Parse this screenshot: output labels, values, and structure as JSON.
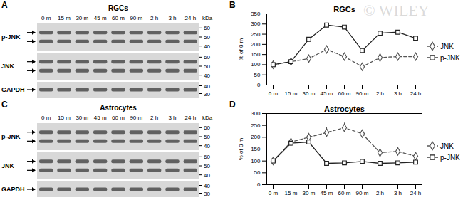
{
  "watermark": "© WILEY",
  "blots": [
    {
      "panel": "A",
      "title": "RGCs",
      "unit": "kDa",
      "lanes": [
        "0 m",
        "15 m",
        "30 m",
        "45 m",
        "60 m",
        "90 m",
        "2 h",
        "3 h",
        "24 h"
      ],
      "rows": [
        {
          "label": "p-JNK",
          "arrows": 2,
          "markers": [
            60,
            50,
            40
          ]
        },
        {
          "label": "JNK",
          "arrows": 2,
          "markers": [
            60,
            50,
            40
          ]
        },
        {
          "label": "GAPDH",
          "arrows": 1,
          "markers": [
            40,
            30
          ]
        }
      ]
    },
    {
      "panel": "C",
      "title": "Astrocytes",
      "unit": "kDa",
      "lanes": [
        "0 m",
        "15 m",
        "30 m",
        "45 m",
        "60 m",
        "90 m",
        "2 h",
        "3 h",
        "24 h"
      ],
      "rows": [
        {
          "label": "p-JNK",
          "arrows": 2,
          "markers": [
            60,
            50,
            40
          ]
        },
        {
          "label": "JNK",
          "arrows": 2,
          "markers": [
            60,
            50,
            40
          ]
        },
        {
          "label": "GAPDH",
          "arrows": 1,
          "markers": [
            40,
            30
          ]
        }
      ]
    }
  ],
  "chart_data": [
    {
      "panel": "B",
      "type": "line",
      "title": "RGCs",
      "categories": [
        "0 m",
        "15 m",
        "30 m",
        "45 m",
        "60 m",
        "90 m",
        "2 h",
        "3 h",
        "24 h"
      ],
      "y_label": "% of 0 m",
      "ylim": [
        0,
        350
      ],
      "yticks": [
        0,
        50,
        100,
        150,
        200,
        250,
        300,
        350
      ],
      "grid": false,
      "legend": "right",
      "series": [
        {
          "name": "JNK",
          "color": "#555555",
          "marker": "diamond",
          "line_style": "dashed",
          "values": [
            100,
            115,
            130,
            175,
            140,
            90,
            135,
            140,
            140
          ]
        },
        {
          "name": "p-JNK",
          "color": "#222222",
          "marker": "square",
          "line_style": "solid",
          "values": [
            100,
            115,
            225,
            295,
            285,
            170,
            255,
            260,
            230
          ]
        }
      ]
    },
    {
      "panel": "D",
      "type": "line",
      "title": "Astrocytes",
      "categories": [
        "0 m",
        "15 m",
        "30 m",
        "45 m",
        "60 m",
        "90 m",
        "2 h",
        "3 h",
        "24 h"
      ],
      "y_label": "% of 0 m",
      "ylim": [
        0,
        300
      ],
      "yticks": [
        0,
        50,
        100,
        150,
        200,
        250,
        300
      ],
      "grid": false,
      "legend": "right",
      "series": [
        {
          "name": "JNK",
          "color": "#555555",
          "marker": "diamond",
          "line_style": "dashed",
          "values": [
            100,
            180,
            200,
            220,
            240,
            215,
            135,
            140,
            120
          ],
          "errors": [
            0,
            10,
            15,
            20,
            20,
            15,
            15,
            10,
            10
          ]
        },
        {
          "name": "p-JNK",
          "color": "#222222",
          "marker": "square",
          "line_style": "solid",
          "values": [
            100,
            175,
            180,
            90,
            92,
            98,
            90,
            92,
            95
          ]
        }
      ]
    }
  ]
}
